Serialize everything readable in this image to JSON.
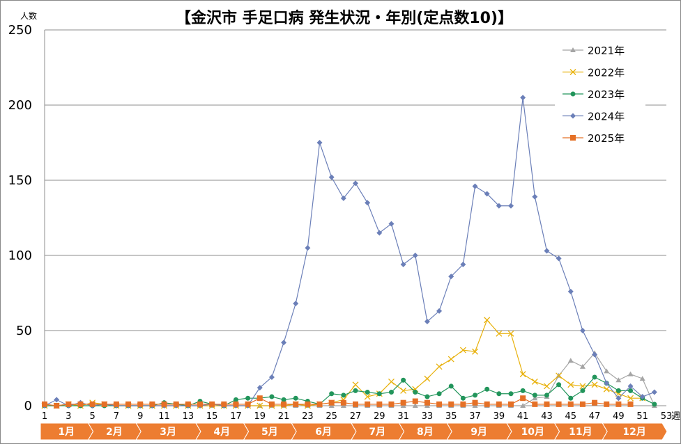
{
  "chart_data": {
    "type": "line",
    "title": "【金沢市 手足口病 発生状況・年別(定点数10)】",
    "ylabel": "人数",
    "xunit": "週",
    "ylim": [
      0,
      250
    ],
    "yticks": [
      "0",
      "50",
      "100",
      "150",
      "200",
      "250"
    ],
    "xlim": [
      1,
      53
    ],
    "xtick_labels": [
      "1",
      "3",
      "5",
      "7",
      "9",
      "11",
      "13",
      "15",
      "17",
      "19",
      "21",
      "23",
      "25",
      "27",
      "29",
      "31",
      "33",
      "35",
      "37",
      "39",
      "41",
      "43",
      "45",
      "47",
      "49",
      "51",
      "53"
    ],
    "grid": "horizontal",
    "legend_position": "top-right",
    "months": [
      {
        "label": "1月",
        "start": 1,
        "end": 5
      },
      {
        "label": "2月",
        "start": 5,
        "end": 9
      },
      {
        "label": "3月",
        "start": 9,
        "end": 14
      },
      {
        "label": "4月",
        "start": 14,
        "end": 18
      },
      {
        "label": "5月",
        "start": 18,
        "end": 22
      },
      {
        "label": "6月",
        "start": 22,
        "end": 27
      },
      {
        "label": "7月",
        "start": 27,
        "end": 31
      },
      {
        "label": "8月",
        "start": 31,
        "end": 35
      },
      {
        "label": "9月",
        "start": 35,
        "end": 40
      },
      {
        "label": "10月",
        "start": 40,
        "end": 44
      },
      {
        "label": "11月",
        "start": 44,
        "end": 48
      },
      {
        "label": "12月",
        "start": 48,
        "end": 53
      }
    ],
    "month_band_color": "#ED7D31",
    "series": [
      {
        "name": "2021年",
        "color": "#A5A5A5",
        "marker": "triangle",
        "values": [
          0,
          0,
          1,
          1,
          1,
          1,
          0,
          0,
          0,
          0,
          0,
          0,
          0,
          0,
          0,
          0,
          0,
          0,
          0,
          0,
          0,
          0,
          0,
          0,
          0,
          0,
          0,
          0,
          0,
          0,
          0,
          0,
          0,
          0,
          0,
          0,
          0,
          0,
          0,
          0,
          0,
          5,
          6,
          20,
          30,
          26,
          35,
          23,
          17,
          21,
          18,
          0
        ]
      },
      {
        "name": "2022年",
        "color": "#E8B10B",
        "marker": "x",
        "values": [
          0,
          0,
          1,
          0,
          2,
          1,
          0,
          0,
          0,
          0,
          0,
          0,
          0,
          0,
          0,
          0,
          0,
          0,
          0,
          0,
          0,
          1,
          0,
          1,
          2,
          4,
          14,
          6,
          8,
          16,
          10,
          11,
          18,
          26,
          31,
          37,
          36,
          57,
          48,
          48,
          21,
          16,
          13,
          20,
          14,
          13,
          14,
          11,
          8,
          5,
          5
        ]
      },
      {
        "name": "2023年",
        "color": "#22955B",
        "marker": "circle",
        "values": [
          0,
          0,
          0,
          0,
          0,
          0,
          0,
          0,
          0,
          0,
          2,
          1,
          0,
          3,
          1,
          0,
          4,
          5,
          5,
          6,
          4,
          5,
          3,
          1,
          8,
          7,
          10,
          9,
          8,
          9,
          17,
          9,
          6,
          8,
          13,
          5,
          7,
          11,
          8,
          8,
          10,
          7,
          7,
          14,
          5,
          10,
          19,
          15,
          10,
          10,
          5,
          1
        ]
      },
      {
        "name": "2024年",
        "color": "#6B7FB8",
        "marker": "diamond",
        "values": [
          0,
          4,
          0,
          2,
          0,
          1,
          0,
          0,
          0,
          0,
          0,
          0,
          0,
          0,
          1,
          0,
          0,
          0,
          12,
          19,
          42,
          68,
          105,
          175,
          152,
          138,
          148,
          135,
          115,
          121,
          94,
          100,
          56,
          63,
          86,
          94,
          146,
          141,
          133,
          133,
          205,
          139,
          103,
          98,
          76,
          50,
          34,
          15,
          5,
          13,
          6,
          9
        ]
      },
      {
        "name": "2025年",
        "color": "#E57026",
        "marker": "square",
        "values": [
          1,
          0,
          1,
          1,
          1,
          1,
          1,
          1,
          1,
          1,
          1,
          1,
          1,
          1,
          1,
          1,
          1,
          1,
          5,
          1,
          1,
          1,
          1,
          1,
          2,
          2,
          1,
          1,
          1,
          1,
          2,
          3,
          2,
          1,
          1,
          1,
          2,
          1,
          1,
          1,
          5,
          1,
          1,
          1,
          1,
          1,
          2,
          1,
          1,
          1
        ]
      }
    ]
  }
}
